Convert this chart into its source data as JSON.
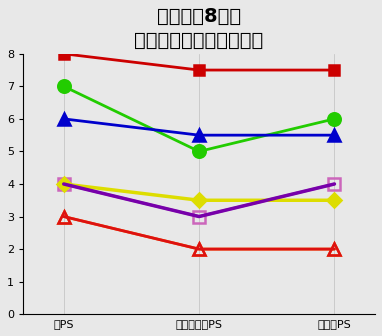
{
  "title_line1": "気診治療8週間",
  "title_line2": "慢性疲労症候群での効果",
  "x_labels": [
    "前PS",
    "治療中最善PS",
    "治療後PS"
  ],
  "ylim": [
    0,
    8
  ],
  "yticks": [
    0,
    1,
    2,
    3,
    4,
    5,
    6,
    7,
    8
  ],
  "series": [
    {
      "values": [
        8.0,
        7.5,
        7.5
      ],
      "color": "#cc0000",
      "marker": "s",
      "markersize": 7,
      "fillstyle": "full",
      "linewidth": 2.0
    },
    {
      "values": [
        7.0,
        5.0,
        6.0
      ],
      "color": "#22cc00",
      "marker": "o",
      "markersize": 9,
      "fillstyle": "full",
      "linewidth": 2.0
    },
    {
      "values": [
        6.0,
        5.5,
        5.5
      ],
      "color": "#0000cc",
      "marker": "^",
      "markersize": 8,
      "fillstyle": "full",
      "linewidth": 2.0
    },
    {
      "values": [
        4.0,
        3.0,
        4.0
      ],
      "color": "#cc66bb",
      "marker": "s",
      "markersize": 9,
      "fillstyle": "none",
      "linewidth": 2.0
    },
    {
      "values": [
        4.0,
        3.5,
        3.5
      ],
      "color": "#dddd00",
      "marker": "D",
      "markersize": 7,
      "fillstyle": "full",
      "linewidth": 2.5
    },
    {
      "values": [
        4.0,
        3.0,
        4.0
      ],
      "color": "#7700aa",
      "marker": "None",
      "markersize": 0,
      "fillstyle": "full",
      "linewidth": 2.5
    },
    {
      "values": [
        3.0,
        2.0,
        2.0
      ],
      "color": "#ff6600",
      "marker": "^",
      "markersize": 9,
      "fillstyle": "none",
      "linewidth": 2.0
    },
    {
      "values": [
        3.0,
        2.0,
        2.0
      ],
      "color": "#dd1111",
      "marker": "^",
      "markersize": 9,
      "fillstyle": "none",
      "linewidth": 2.0
    }
  ],
  "background_color": "#e8e8e8",
  "title_fontsize": 14,
  "tick_fontsize": 8,
  "figsize": [
    3.82,
    3.36
  ],
  "dpi": 100
}
